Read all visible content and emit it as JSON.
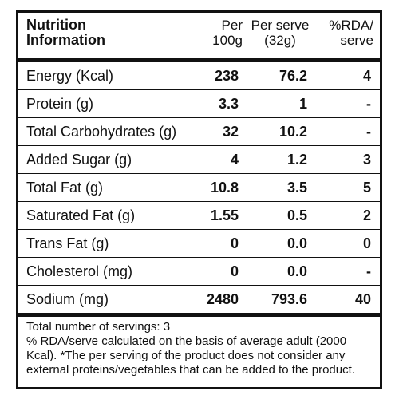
{
  "header": {
    "title_line1": "Nutrition",
    "title_line2": "Information",
    "col1_line1": "Per",
    "col1_line2": "100g",
    "col2_line1": "Per serve",
    "col2_line2": "(32g)",
    "col3_line1": "%RDA/",
    "col3_line2": "serve"
  },
  "rows": [
    {
      "label": "Energy (Kcal)",
      "per100g": "238",
      "perserve": "76.2",
      "rda": "4"
    },
    {
      "label": "Protein (g)",
      "per100g": "3.3",
      "perserve": "1",
      "rda": "-"
    },
    {
      "label": "Total Carbohydrates (g)",
      "per100g": "32",
      "perserve": "10.2",
      "rda": "-"
    },
    {
      "label": "Added Sugar (g)",
      "per100g": "4",
      "perserve": "1.2",
      "rda": "3"
    },
    {
      "label": "Total Fat (g)",
      "per100g": "10.8",
      "perserve": "3.5",
      "rda": "5"
    },
    {
      "label": "Saturated Fat (g)",
      "per100g": "1.55",
      "perserve": "0.5",
      "rda": "2"
    },
    {
      "label": "Trans Fat (g)",
      "per100g": "0",
      "perserve": "0.0",
      "rda": "0"
    },
    {
      "label": "Cholesterol (mg)",
      "per100g": "0",
      "perserve": "0.0",
      "rda": "-"
    },
    {
      "label": "Sodium (mg)",
      "per100g": "2480",
      "perserve": "793.6",
      "rda": "40"
    }
  ],
  "footer": {
    "servings": "Total number of servings:  3",
    "note": "% RDA/serve calculated on the basis of average adult (2000 Kcal). *The per serving of the product does not consider any external proteins/vegetables that can be added to the product."
  }
}
